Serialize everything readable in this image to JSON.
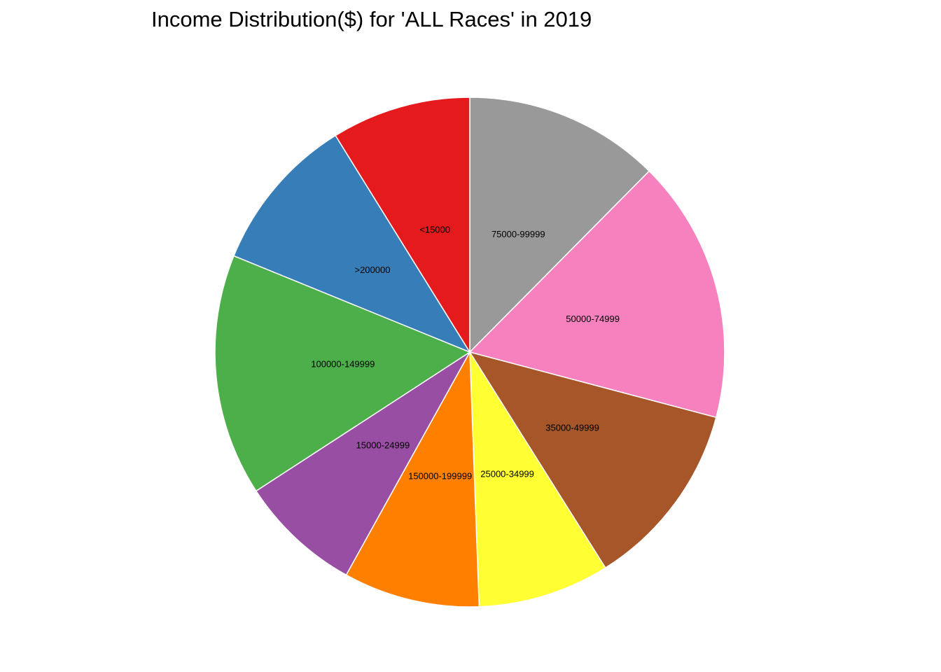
{
  "chart_data": {
    "type": "pie",
    "title": "Income Distribution($) for 'ALL Races' in 2019",
    "start": "12 o'clock",
    "direction": "clockwise",
    "slices": [
      {
        "label": "75000-99999",
        "value": 12.8,
        "color": "#999999"
      },
      {
        "label": "50000-74999",
        "value": 17.2,
        "color": "#F781BF"
      },
      {
        "label": "35000-49999",
        "value": 12.3,
        "color": "#A65628"
      },
      {
        "label": "25000-34999",
        "value": 8.6,
        "color": "#FFFF33"
      },
      {
        "label": "150000-199999",
        "value": 8.9,
        "color": "#FF7F00"
      },
      {
        "label": "15000-24999",
        "value": 8.0,
        "color": "#984EA3"
      },
      {
        "label": "100000-149999",
        "value": 15.8,
        "color": "#4DAF4A"
      },
      {
        "label": ">200000",
        "value": 10.3,
        "color": "#377EB8"
      },
      {
        "label": "<15000",
        "value": 9.1,
        "color": "#E41A1C"
      }
    ]
  }
}
